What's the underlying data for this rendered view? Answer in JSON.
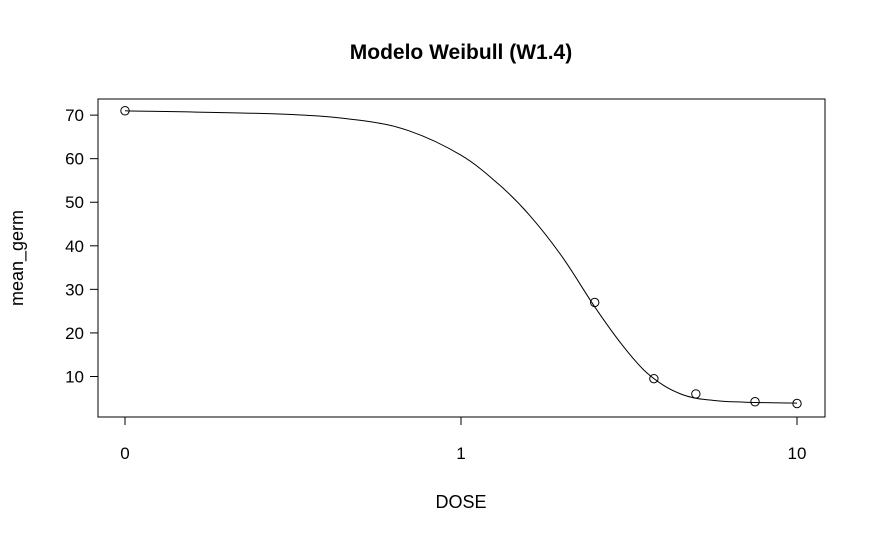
{
  "chart_data": {
    "type": "scatter",
    "title": "Modelo Weibull (W1.4)",
    "xlabel": "DOSE",
    "ylabel": "mean_germ",
    "x_scale": "log",
    "x_ticks": [
      {
        "value": 0,
        "label": "0"
      },
      {
        "value": 1,
        "label": "1"
      },
      {
        "value": 10,
        "label": "10"
      }
    ],
    "y_ticks": [
      10,
      20,
      30,
      40,
      50,
      60,
      70
    ],
    "ylim": [
      0.7,
      73.7
    ],
    "grid": false,
    "legend": "none",
    "points": [
      {
        "x": 0,
        "y": 71.0
      },
      {
        "x": 2.5,
        "y": 27.0
      },
      {
        "x": 3.75,
        "y": 9.5
      },
      {
        "x": 5.0,
        "y": 6.0
      },
      {
        "x": 7.5,
        "y": 4.2
      },
      {
        "x": 10.0,
        "y": 3.8
      }
    ],
    "fitted_curve": {
      "model": "W1.4",
      "x": [
        0,
        0.3,
        0.5,
        0.7,
        1.0,
        1.3,
        1.6,
        2.0,
        2.5,
        3.0,
        3.5,
        4.0,
        4.5,
        5.0,
        5.5,
        6.0,
        7.0,
        8.0,
        10.0
      ],
      "y": [
        71.0,
        70.2,
        68.8,
        66.4,
        60.8,
        54.0,
        47.0,
        37.5,
        26.0,
        17.5,
        11.5,
        8.0,
        6.0,
        5.0,
        4.6,
        4.3,
        4.1,
        4.0,
        3.9
      ]
    }
  }
}
